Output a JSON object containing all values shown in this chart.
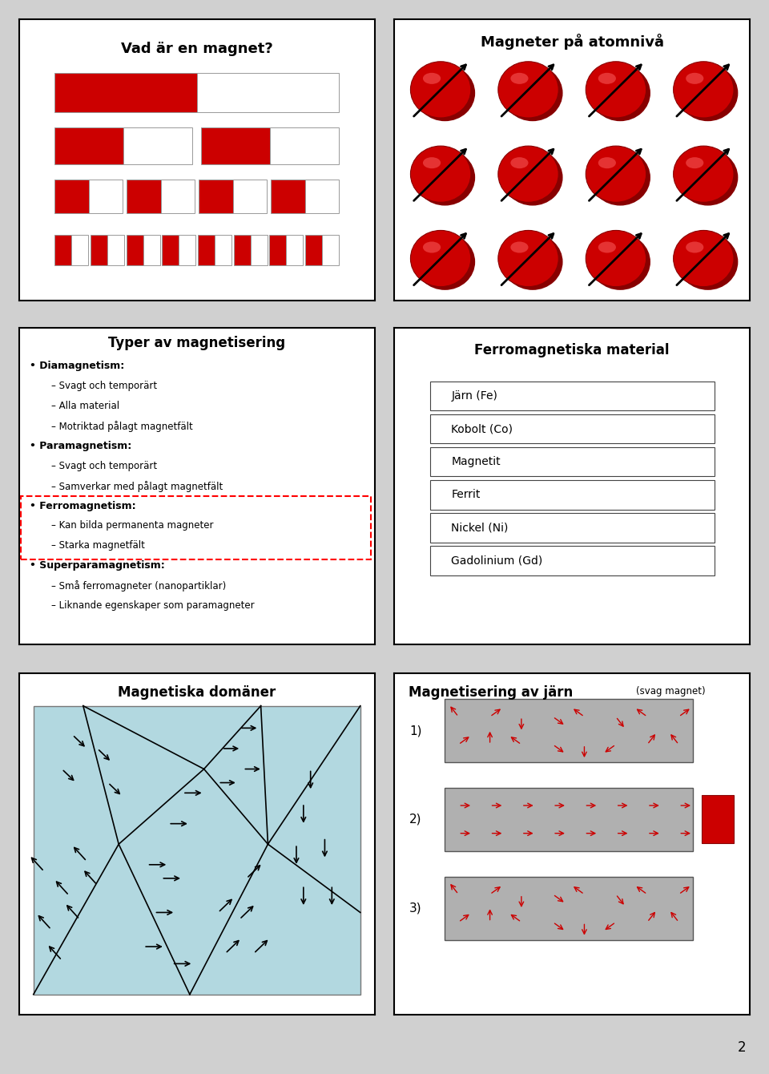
{
  "bg_color": "#ffffff",
  "border_color": "#000000",
  "red_color": "#cc0000",
  "dark_red": "#990000",
  "gray_bar": "#bbbbbb",
  "light_blue": "#aed6e0",
  "panel1": {
    "title": "Vad är en magnet?"
  },
  "panel2": {
    "title": "Magneter på atomnivå"
  },
  "panel3": {
    "title": "Typer av magnetisering",
    "items": [
      {
        "bullet": "• Diamagnetism:",
        "level": 0,
        "bold": true
      },
      {
        "bullet": "– Svagt och temporärt",
        "level": 1,
        "bold": false
      },
      {
        "bullet": "– Alla material",
        "level": 1,
        "bold": false
      },
      {
        "bullet": "– Motriktad pålagt magnetfält",
        "level": 1,
        "bold": false
      },
      {
        "bullet": "• Paramagnetism:",
        "level": 0,
        "bold": true
      },
      {
        "bullet": "– Svagt och temporärt",
        "level": 1,
        "bold": false
      },
      {
        "bullet": "– Samverkar med pålagt magnetfält",
        "level": 1,
        "bold": false
      },
      {
        "bullet": "• Ferromagnetism:",
        "level": 0,
        "bold": true,
        "highlight": true
      },
      {
        "bullet": "– Kan bilda permanenta magneter",
        "level": 1,
        "bold": false,
        "highlight": true
      },
      {
        "bullet": "– Starka magnetfält",
        "level": 1,
        "bold": false,
        "highlight": true
      },
      {
        "bullet": "• Superparamagnetism:",
        "level": 0,
        "bold": true
      },
      {
        "bullet": "– Små ferromagneter (nanopartiklar)",
        "level": 1,
        "bold": false
      },
      {
        "bullet": "– Liknande egenskaper som paramagneter",
        "level": 1,
        "bold": false
      }
    ]
  },
  "panel4": {
    "title": "Ferromagnetiska material",
    "materials": [
      "Järn (Fe)",
      "Kobolt (Co)",
      "Magnetit",
      "Ferrit",
      "Nickel (Ni)",
      "Gadolinium (Gd)"
    ]
  },
  "panel5": {
    "title": "Magnetiska domäner"
  },
  "panel6": {
    "title": "Magnetisering av järn",
    "subtitle": "(svag magnet)"
  },
  "page_number": "2"
}
